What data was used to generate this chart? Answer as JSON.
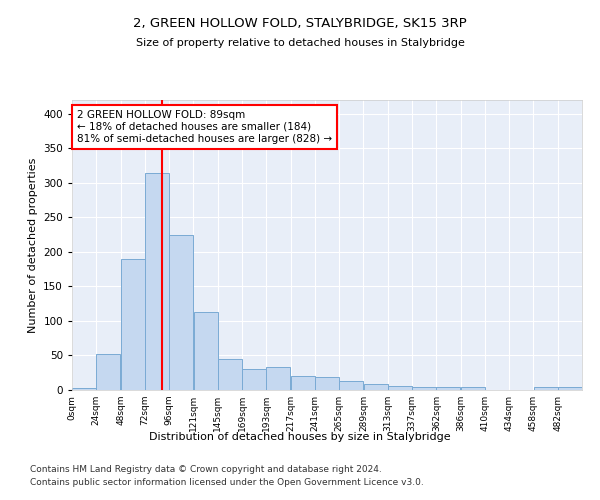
{
  "title": "2, GREEN HOLLOW FOLD, STALYBRIDGE, SK15 3RP",
  "subtitle": "Size of property relative to detached houses in Stalybridge",
  "xlabel": "Distribution of detached houses by size in Stalybridge",
  "ylabel": "Number of detached properties",
  "bar_color": "#c5d8f0",
  "bar_edge_color": "#7aaad4",
  "background_color": "#e8eef8",
  "grid_color": "#ffffff",
  "red_line_x": 89,
  "annotation_text": "2 GREEN HOLLOW FOLD: 89sqm\n← 18% of detached houses are smaller (184)\n81% of semi-detached houses are larger (828) →",
  "bin_edges": [
    0,
    24,
    48,
    72,
    96,
    120,
    144,
    168,
    192,
    216,
    240,
    264,
    288,
    312,
    336,
    360,
    384,
    408,
    432,
    456,
    480,
    504
  ],
  "bar_heights": [
    3,
    52,
    190,
    315,
    225,
    113,
    45,
    31,
    33,
    20,
    19,
    13,
    8,
    6,
    5,
    5,
    4,
    0,
    0,
    4,
    5
  ],
  "xlim": [
    0,
    504
  ],
  "ylim": [
    0,
    420
  ],
  "yticks": [
    0,
    50,
    100,
    150,
    200,
    250,
    300,
    350,
    400
  ],
  "xtick_labels": [
    "0sqm",
    "24sqm",
    "48sqm",
    "72sqm",
    "96sqm",
    "121sqm",
    "145sqm",
    "169sqm",
    "193sqm",
    "217sqm",
    "241sqm",
    "265sqm",
    "289sqm",
    "313sqm",
    "337sqm",
    "362sqm",
    "386sqm",
    "410sqm",
    "434sqm",
    "458sqm",
    "482sqm"
  ],
  "footer_line1": "Contains HM Land Registry data © Crown copyright and database right 2024.",
  "footer_line2": "Contains public sector information licensed under the Open Government Licence v3.0.",
  "figsize": [
    6.0,
    5.0
  ],
  "dpi": 100
}
